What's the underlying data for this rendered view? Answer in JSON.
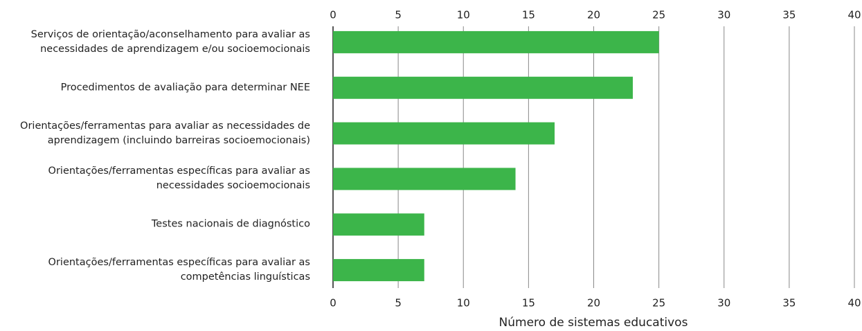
{
  "chart_data": {
    "type": "bar",
    "orientation": "horizontal",
    "x_label": "Número de sistemas educativos",
    "categories": [
      "Serviços de orientação/aconselhamento para avaliar as necessidades de aprendizagem e/ou socioemocionais",
      "Procedimentos de avaliação para determinar NEE",
      "Orientações/ferramentas para avaliar as necessidades de aprendizagem (incluindo barreiras socioemocionais)",
      "Orientações/ferramentas específicas para avaliar as necessidades socioemocionais",
      "Testes nacionais de diagnóstico",
      "Orientações/ferramentas específicas para avaliar as competências linguísticas"
    ],
    "values": [
      25,
      23,
      17,
      14,
      7,
      7
    ],
    "color": "#3cb54a",
    "xlim": [
      0,
      40
    ],
    "xticks": [
      0,
      5,
      10,
      15,
      20,
      25,
      30,
      35,
      40
    ],
    "grid": true
  }
}
